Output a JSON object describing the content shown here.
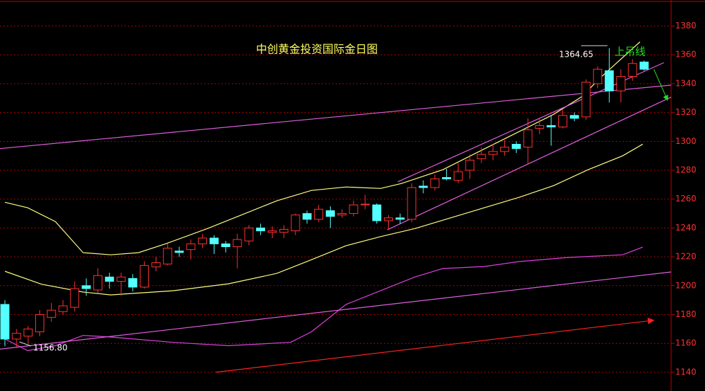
{
  "chart_data": {
    "type": "candlestick",
    "title": "中创黄金投资国际金日图",
    "annotations": [
      "1364.65",
      "上吊线",
      "1156.80"
    ],
    "up_color": "#ff3232",
    "down_color": "#54ffff",
    "open": [
      1187,
      1163,
      1165,
      1168,
      1178,
      1182,
      1185,
      1200,
      1197,
      1206,
      1203,
      1205,
      1199,
      1213,
      1215,
      1224,
      1225,
      1229,
      1233,
      1229,
      1227,
      1231,
      1240,
      1237,
      1237,
      1238,
      1250,
      1246,
      1252,
      1249,
      1250,
      1256,
      1256,
      1245,
      1247,
      1246,
      1269,
      1268,
      1275,
      1273,
      1280,
      1288,
      1291,
      1293,
      1298,
      1296,
      1309,
      1311,
      1310,
      1318,
      1317,
      1340,
      1349,
      1335,
      1345,
      1355
    ],
    "high": [
      1190,
      1170,
      1172,
      1183,
      1188,
      1190,
      1203,
      1205,
      1212,
      1209,
      1209,
      1208,
      1217,
      1220,
      1229,
      1227,
      1232,
      1236,
      1235,
      1231,
      1236,
      1242,
      1243,
      1241,
      1242,
      1250,
      1252,
      1256,
      1255,
      1253,
      1259,
      1263,
      1257,
      1249,
      1250,
      1271,
      1273,
      1277,
      1281,
      1285,
      1291,
      1296,
      1298,
      1301,
      1300,
      1316,
      1316,
      1318,
      1322,
      1320,
      1343,
      1352,
      1364.65,
      1350,
      1357,
      1356
    ],
    "low": [
      1158,
      1156.8,
      1160,
      1165,
      1175,
      1180,
      1182,
      1193,
      1195,
      1198,
      1193,
      1196,
      1198,
      1210,
      1214,
      1220,
      1218,
      1226,
      1222,
      1223,
      1212,
      1228,
      1235,
      1233,
      1233,
      1235,
      1243,
      1244,
      1240,
      1247,
      1248,
      1253,
      1243,
      1239,
      1243,
      1244,
      1264,
      1266,
      1273,
      1271,
      1274,
      1285,
      1287,
      1290,
      1292,
      1284,
      1305,
      1297,
      1309,
      1314,
      1315,
      1337,
      1327,
      1327,
      1342,
      1349
    ],
    "close": [
      1163,
      1167,
      1170,
      1180,
      1183,
      1186,
      1198,
      1198,
      1207,
      1203,
      1206,
      1199,
      1214,
      1216,
      1226,
      1223,
      1229,
      1233,
      1229,
      1227,
      1232,
      1240,
      1238,
      1238,
      1239,
      1249,
      1246,
      1253,
      1248,
      1250,
      1256,
      1256.5,
      1245,
      1247,
      1246,
      1268,
      1268,
      1274,
      1274,
      1279,
      1287,
      1291,
      1293,
      1296,
      1295,
      1308,
      1311,
      1310,
      1318,
      1316,
      1341,
      1350,
      1335,
      1345,
      1354,
      1350
    ],
    "lines": [
      {
        "color": "#ffff80",
        "x": [
          0,
          1.96,
          4.35,
          6.73,
          9.11,
          11.49,
          13.87,
          17.44,
          20.42,
          23.39,
          26.37,
          29.35,
          32.32,
          34.11,
          37.68,
          41.25,
          44.82,
          47.2,
          49.58,
          51.37,
          54.64
        ],
        "values": [
          1257.8,
          1254,
          1244.4,
          1222.9,
          1221.4,
          1222.9,
          1229.1,
          1239.6,
          1249.2,
          1258.8,
          1266,
          1268.4,
          1267.4,
          1270.8,
          1280.4,
          1294.8,
          1309.1,
          1318.7,
          1330.7,
          1345.1,
          1369
        ]
      },
      {
        "color": "#ffff80",
        "x": [
          0,
          3.15,
          6.73,
          9.11,
          14.46,
          19.23,
          23.39,
          26.37,
          29.35,
          32.32,
          35.3,
          38.27,
          41.25,
          44.23,
          47.2,
          50.18,
          53.15,
          54.88
        ],
        "values": [
          1210,
          1201,
          1195.6,
          1193.6,
          1196.5,
          1201.3,
          1208.5,
          1218,
          1227.7,
          1234,
          1239.6,
          1246.8,
          1254,
          1261.2,
          1269.3,
          1280.4,
          1290,
          1298.1
        ]
      },
      {
        "color": "#e040e0",
        "x": [
          0,
          1.96,
          4.35,
          6.73,
          9.11,
          14.46,
          19.23,
          24.58,
          26.37,
          29.35,
          32.32,
          35.3,
          37.68,
          41.25,
          44.23,
          48.39,
          50.77,
          53.15,
          54.88
        ],
        "values": [
          1163,
          1155,
          1158.4,
          1165.5,
          1164.4,
          1160.7,
          1158.4,
          1160.7,
          1168,
          1187,
          1196.5,
          1206.1,
          1211.9,
          1213.3,
          1216.7,
          1219.5,
          1220.5,
          1221.4,
          1226.7
        ]
      },
      {
        "color": "#e060e0",
        "x": [
          -0.42,
          57.32
        ],
        "values": [
          1295,
          1339
        ]
      },
      {
        "color": "#e060e0",
        "x": [
          -0.42,
          57.32
        ],
        "values": [
          1156,
          1209.5
        ]
      },
      {
        "color": "#e060e0",
        "x": [
          33.8,
          56.7
        ],
        "values": [
          1272,
          1354.6
        ]
      },
      {
        "color": "#e060e0",
        "x": [
          32.9,
          57.32
        ],
        "values": [
          1238.7,
          1330.7
        ]
      },
      {
        "color": "#ff2020",
        "x": [
          18.15,
          55.83
        ],
        "values": [
          1140,
          1176
        ],
        "arrow": true
      }
    ],
    "xlim": [
      -0.42,
      57.32
    ],
    "ylim": [
      1127,
      1398
    ],
    "yticks": [
      1140,
      1160,
      1180,
      1200,
      1220,
      1240,
      1260,
      1280,
      1300,
      1320,
      1340,
      1360,
      1380
    ],
    "grid": true
  }
}
